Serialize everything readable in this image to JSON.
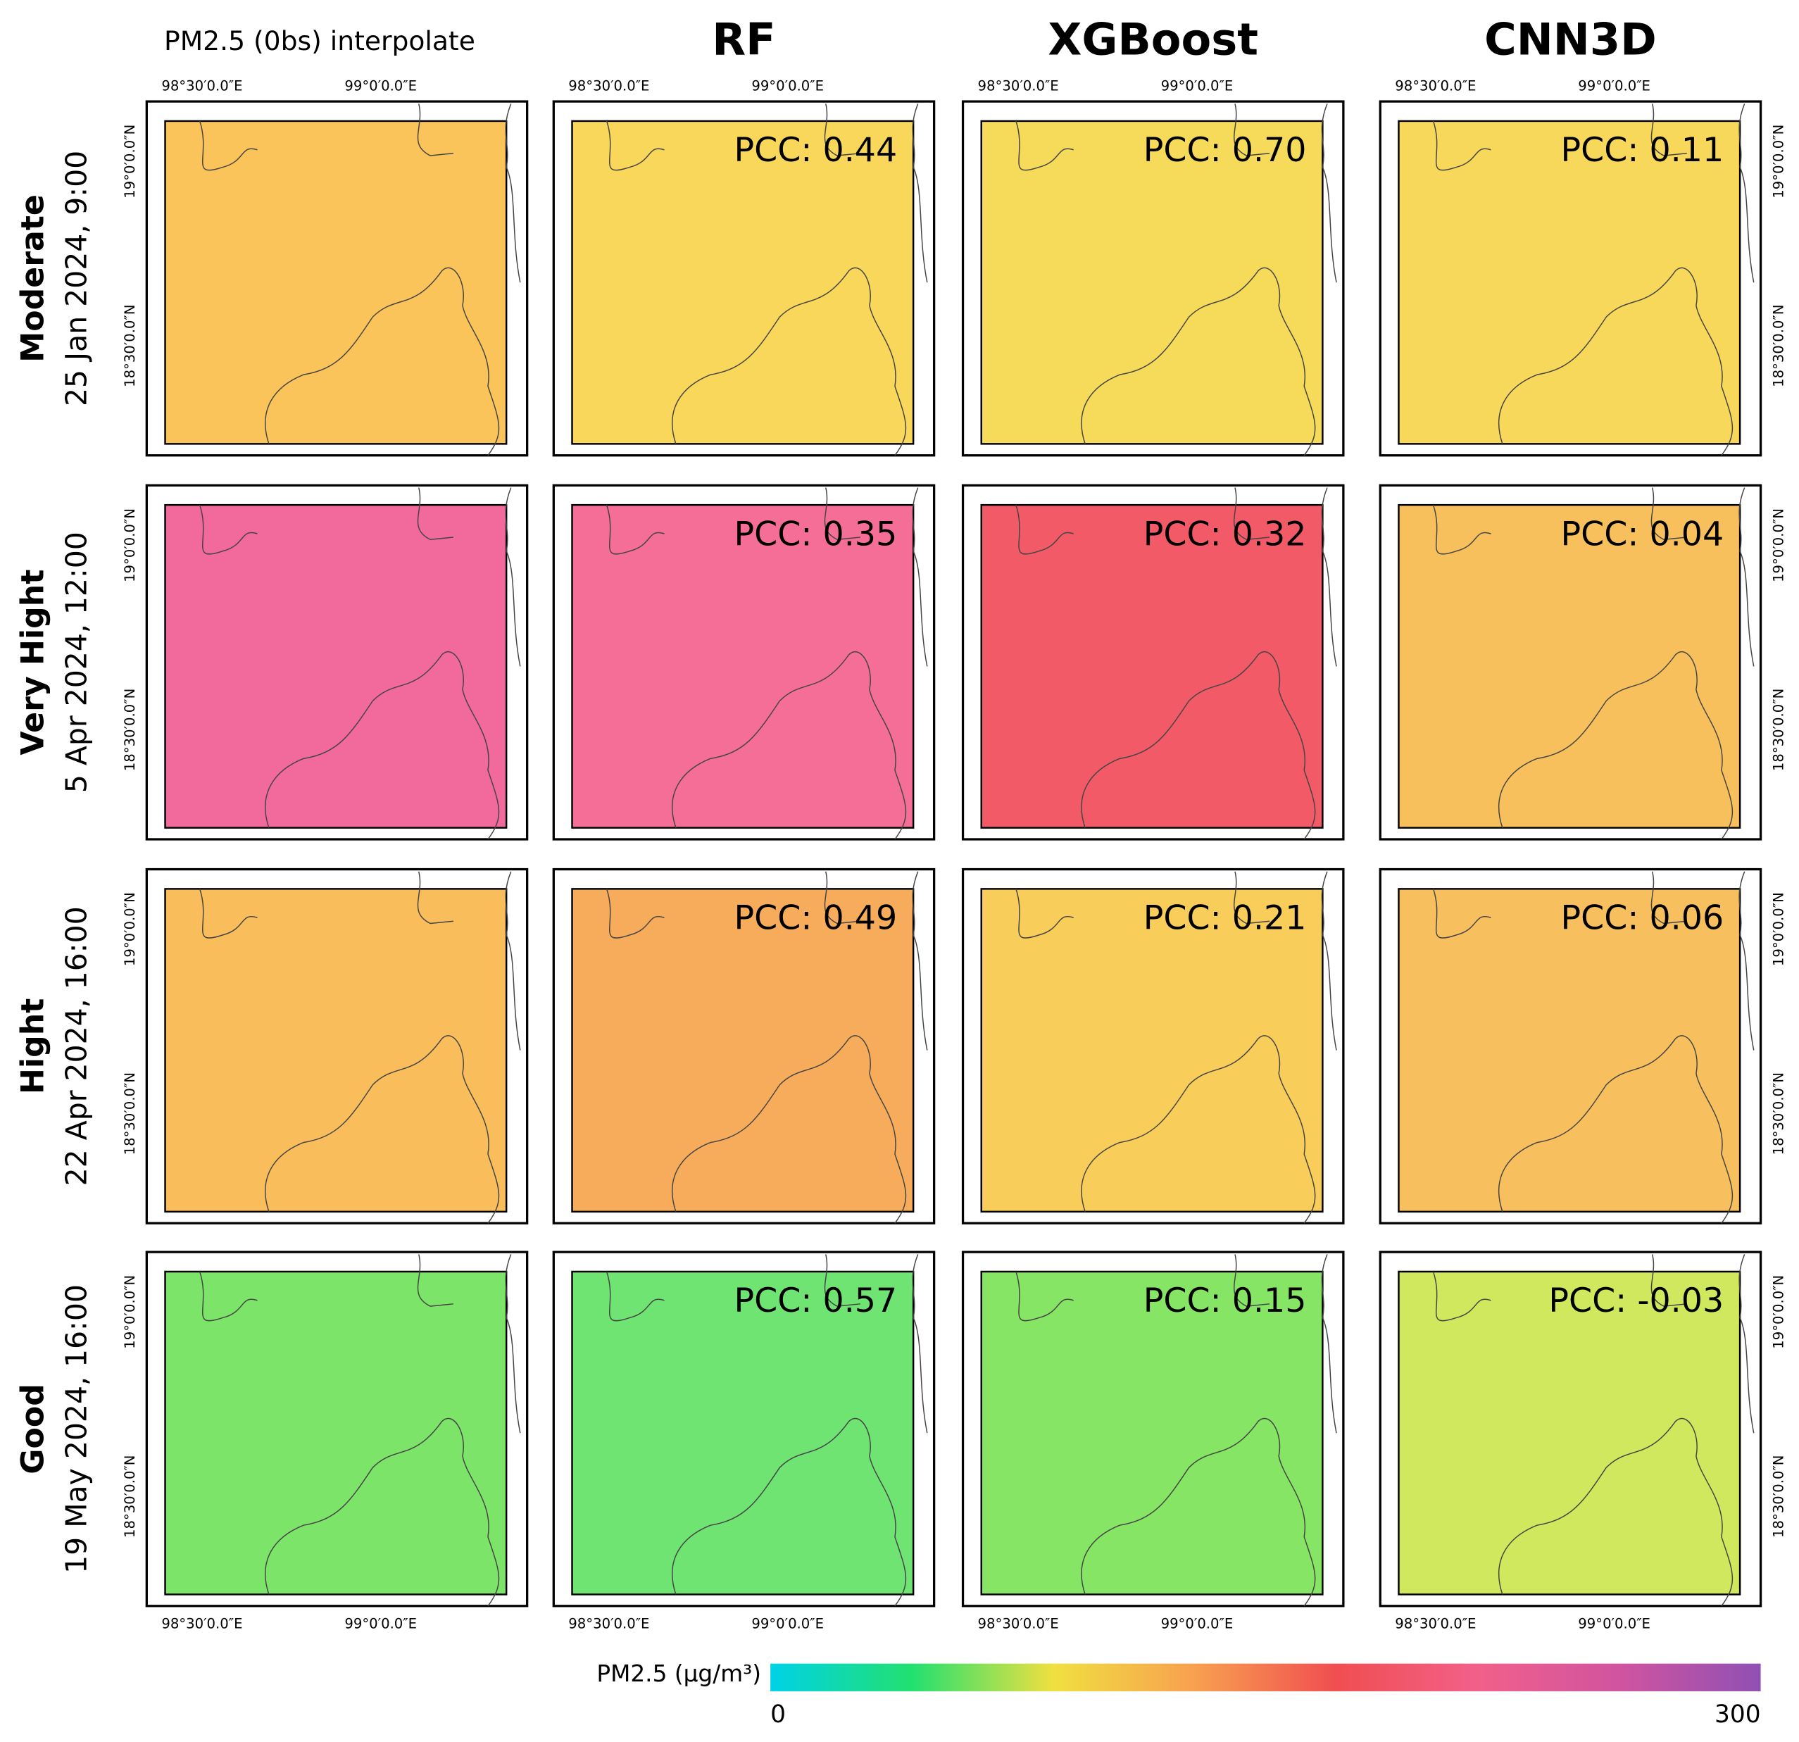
{
  "columns": [
    "PM2.5 (0bs) interpolate",
    "RF",
    "XGBoost",
    "CNN3D"
  ],
  "rows": [
    {
      "category": "Moderate",
      "date": "25 Jan 2024, 9:00",
      "pcc": [
        "PCC: 0.44",
        "PCC: 0.70",
        "PCC: 0.11"
      ],
      "fills": [
        "#fbc45a",
        "#f8d75a",
        "#f6da5a",
        "#f7d85b"
      ]
    },
    {
      "category": "Very Hight",
      "date": "5 Apr 2024, 12:00",
      "pcc": [
        "PCC: 0.35",
        "PCC: 0.32",
        "PCC: 0.04"
      ],
      "fills": [
        "#f2699c",
        "#f56e97",
        "#f25a68",
        "#f8c05c"
      ]
    },
    {
      "category": "Hight",
      "date": "22 Apr 2024, 16:00",
      "pcc": [
        "PCC: 0.49",
        "PCC: 0.21",
        "PCC: 0.06"
      ],
      "fills": [
        "#f9bd5c",
        "#f7ac5b",
        "#f9cd5a",
        "#f8bf5f"
      ]
    },
    {
      "category": "Good",
      "date": "19 May 2024, 16:00",
      "pcc": [
        "PCC: 0.57",
        "PCC: 0.15",
        "PCC: -0.03"
      ],
      "fills": [
        "#7de46a",
        "#6fe473",
        "#86e565",
        "#cfe85e"
      ]
    }
  ],
  "lon_ticks": [
    "98°30′0.0″E",
    "99°0′0.0″E"
  ],
  "lat_ticks": [
    "19°0′0.0″N",
    "18°30′0.0″N"
  ],
  "colorbar": {
    "label": "PM2.5 (μg/m³)",
    "min": "0",
    "max": "300",
    "colors": [
      "#00d2e6",
      "#22e070",
      "#f0e040",
      "#f8a050",
      "#f04e50",
      "#f2608a",
      "#d054a0",
      "#9050b4"
    ]
  }
}
